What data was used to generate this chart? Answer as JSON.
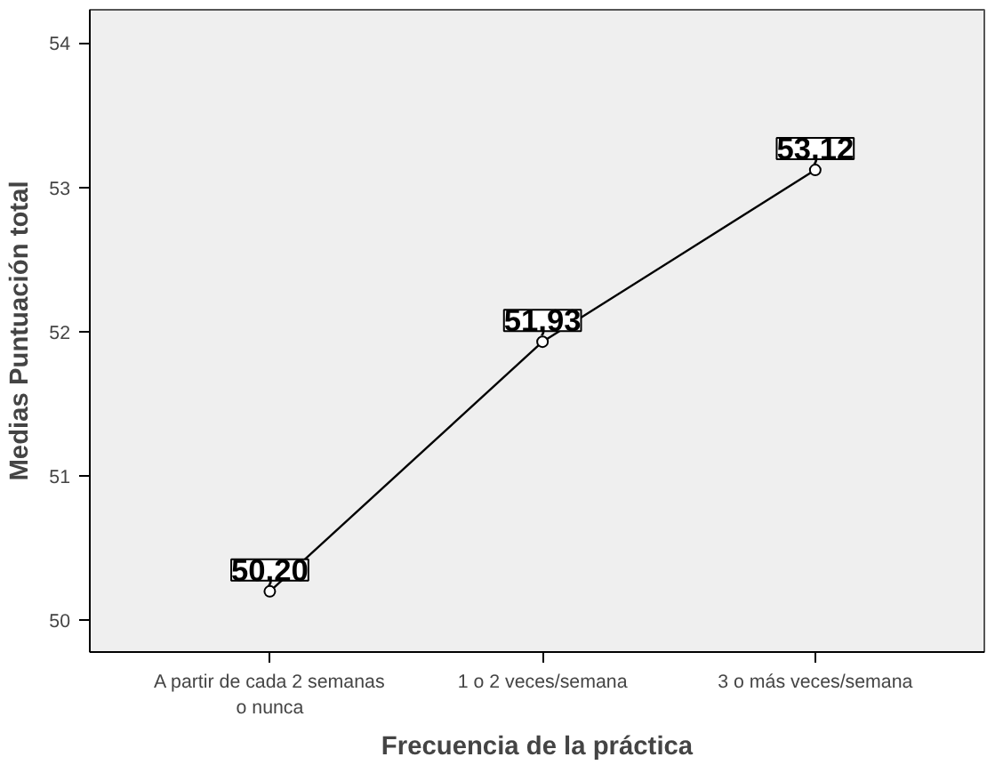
{
  "chart_data": {
    "type": "line",
    "xlabel": "Frecuencia de la práctica",
    "ylabel": "Medias Puntuación total",
    "categories": [
      "A partir de cada 2 semanas o nunca",
      "1 o 2 veces/semana",
      "3 o más veces/semana"
    ],
    "values": [
      50.2,
      51.93,
      53.12
    ],
    "value_labels": [
      "50,20",
      "51,93",
      "53,12"
    ],
    "color": "#000000",
    "marker": "circle",
    "ylim": [
      49.78,
      54.23
    ],
    "yticks": [
      50,
      51,
      52,
      53,
      54
    ],
    "grid": false
  }
}
